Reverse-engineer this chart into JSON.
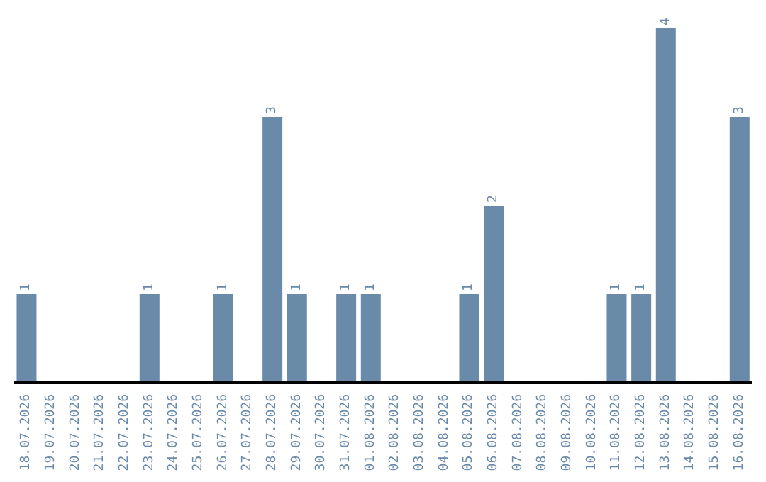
{
  "chart_data": {
    "type": "bar",
    "categories": [
      "18.07.2026",
      "19.07.2026",
      "20.07.2026",
      "21.07.2026",
      "22.07.2026",
      "23.07.2026",
      "24.07.2026",
      "25.07.2026",
      "26.07.2026",
      "27.07.2026",
      "28.07.2026",
      "29.07.2026",
      "30.07.2026",
      "31.07.2026",
      "01.08.2026",
      "02.08.2026",
      "03.08.2026",
      "04.08.2026",
      "05.08.2026",
      "06.08.2026",
      "07.08.2026",
      "08.08.2026",
      "09.08.2026",
      "10.08.2026",
      "11.08.2026",
      "12.08.2026",
      "13.08.2026",
      "14.08.2026",
      "15.08.2026",
      "16.08.2026"
    ],
    "values": [
      1,
      0,
      0,
      0,
      0,
      1,
      0,
      0,
      1,
      0,
      3,
      1,
      0,
      1,
      1,
      0,
      0,
      0,
      1,
      2,
      0,
      0,
      0,
      0,
      1,
      1,
      4,
      0,
      0,
      3
    ],
    "value_labels": [
      "1",
      null,
      null,
      null,
      null,
      "1",
      null,
      null,
      "1",
      null,
      "3",
      "1",
      null,
      "1",
      "1",
      null,
      null,
      null,
      "1",
      "2",
      null,
      null,
      null,
      null,
      "1",
      "1",
      "4",
      null,
      null,
      "3"
    ],
    "color": "#6a8aaa"
  }
}
